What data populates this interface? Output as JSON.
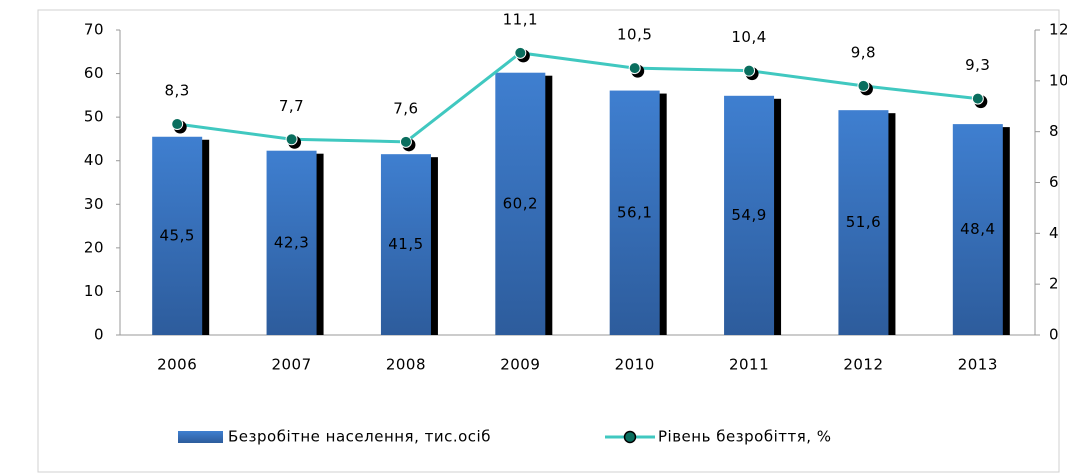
{
  "chart_data": {
    "type": "bar-line",
    "categories": [
      "2006",
      "2007",
      "2008",
      "2009",
      "2010",
      "2011",
      "2012",
      "2013"
    ],
    "series": [
      {
        "name": "Безробітне населення, тис.осіб",
        "type": "bar",
        "color": "#3a75c4",
        "values": [
          45.5,
          42.3,
          41.5,
          60.2,
          56.1,
          54.9,
          51.6,
          48.4
        ],
        "value_labels": [
          "45,5",
          "42,3",
          "41,5",
          "60,2",
          "56,1",
          "54,9",
          "51,6",
          "48,4"
        ]
      },
      {
        "name": "Рівень безробіття, %",
        "type": "line",
        "axis": "y2",
        "color": "#40c8c0",
        "marker_color": "#0a6e5e",
        "values": [
          8.3,
          7.7,
          7.6,
          11.1,
          10.5,
          10.4,
          9.8,
          9.3
        ],
        "value_labels": [
          "8,3",
          "7,7",
          "7,6",
          "11,1",
          "10,5",
          "10,4",
          "9,8",
          "9,3"
        ]
      }
    ],
    "ylim": [
      0,
      70
    ],
    "yticks": [
      0,
      10,
      20,
      30,
      40,
      50,
      60,
      70
    ],
    "y2lim": [
      0,
      12
    ],
    "y2ticks": [
      0,
      2,
      4,
      6,
      8,
      10,
      12
    ],
    "legend": "bottom"
  }
}
